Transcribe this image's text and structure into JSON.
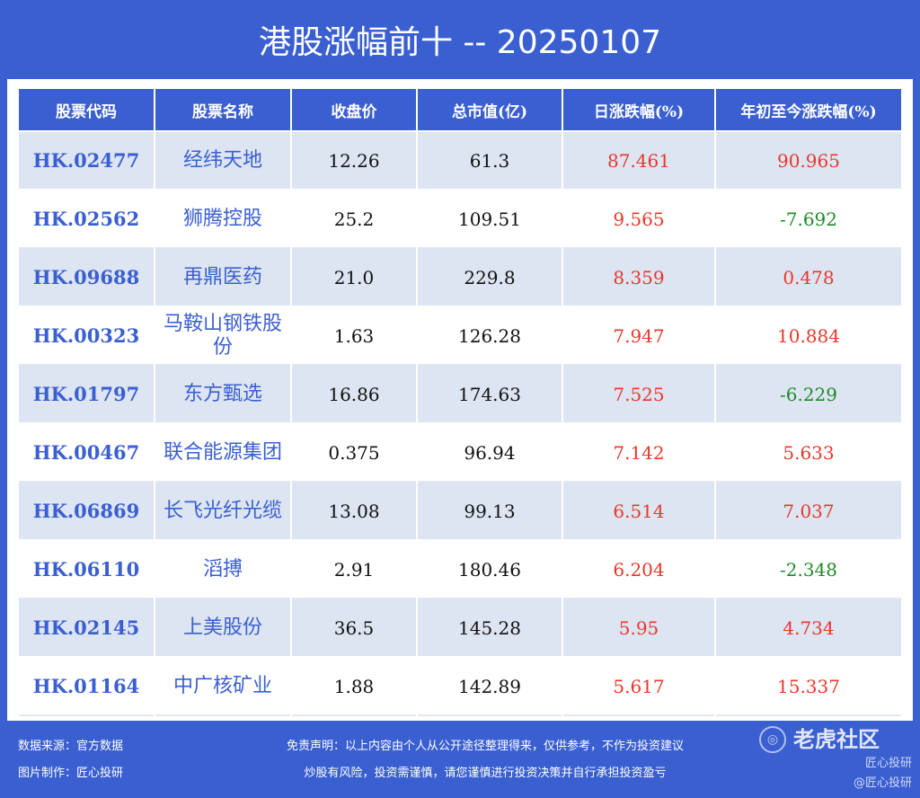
{
  "title": "港股涨幅前十 -- 20250107",
  "table": {
    "headers": [
      "股票代码",
      "股票名称",
      "收盘价",
      "总市值(亿)",
      "日涨跌幅(%)",
      "年初至今涨跌幅(%)"
    ],
    "rows": [
      {
        "code": "HK.02477",
        "name": "经纬天地",
        "close": "12.26",
        "mcap": "61.3",
        "day": "87.461",
        "ytd": "90.965",
        "ytd_sign": "pos"
      },
      {
        "code": "HK.02562",
        "name": "狮腾控股",
        "close": "25.2",
        "mcap": "109.51",
        "day": "9.565",
        "ytd": "-7.692",
        "ytd_sign": "neg"
      },
      {
        "code": "HK.09688",
        "name": "再鼎医药",
        "close": "21.0",
        "mcap": "229.8",
        "day": "8.359",
        "ytd": "0.478",
        "ytd_sign": "pos"
      },
      {
        "code": "HK.00323",
        "name": "马鞍山钢铁股份",
        "close": "1.63",
        "mcap": "126.28",
        "day": "7.947",
        "ytd": "10.884",
        "ytd_sign": "pos"
      },
      {
        "code": "HK.01797",
        "name": "东方甄选",
        "close": "16.86",
        "mcap": "174.63",
        "day": "7.525",
        "ytd": "-6.229",
        "ytd_sign": "neg"
      },
      {
        "code": "HK.00467",
        "name": "联合能源集团",
        "close": "0.375",
        "mcap": "96.94",
        "day": "7.142",
        "ytd": "5.633",
        "ytd_sign": "pos"
      },
      {
        "code": "HK.06869",
        "name": "长飞光纤光缆",
        "close": "13.08",
        "mcap": "99.13",
        "day": "6.514",
        "ytd": "7.037",
        "ytd_sign": "pos"
      },
      {
        "code": "HK.06110",
        "name": "滔搏",
        "close": "2.91",
        "mcap": "180.46",
        "day": "6.204",
        "ytd": "-2.348",
        "ytd_sign": "neg"
      },
      {
        "code": "HK.02145",
        "name": "上美股份",
        "close": "36.5",
        "mcap": "145.28",
        "day": "5.95",
        "ytd": "4.734",
        "ytd_sign": "pos"
      },
      {
        "code": "HK.01164",
        "name": "中广核矿业",
        "close": "1.88",
        "mcap": "142.89",
        "day": "5.617",
        "ytd": "15.337",
        "ytd_sign": "pos"
      }
    ]
  },
  "footer": {
    "source": "数据来源：官方数据",
    "maker": "图片制作：匠心投研",
    "disclaimer": "免责声明：以上内容由个人从公开途径整理得来，仅供参考，不作为投资建议",
    "risk": "炒股有风险，投资需谨慎，请您谨慎进行投资决策并自行承担投资盈亏",
    "brand": "老虎社区",
    "watermark1": "匠心投研",
    "watermark2": "@匠心投研"
  },
  "colors": {
    "background": "#3a5fd1",
    "positive": "#e8382b",
    "negative": "#1f8a2a",
    "row_alt": "#dde4f2"
  }
}
